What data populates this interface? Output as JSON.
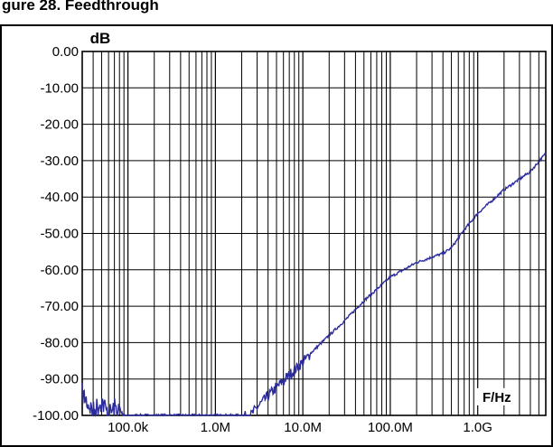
{
  "header": {
    "text": "gure 28. Feedthrough"
  },
  "chart_data": {
    "type": "line",
    "title": "",
    "ylabel": "dB",
    "xlabel": "F/Hz",
    "x_scale": "log",
    "xlim": [
      30000,
      6000000000
    ],
    "ylim": [
      -100,
      0
    ],
    "y_ticks": [
      0,
      -10,
      -20,
      -30,
      -40,
      -50,
      -60,
      -70,
      -80,
      -90,
      -100
    ],
    "y_tick_labels": [
      "0.00",
      "-10.00",
      "-20.00",
      "-30.00",
      "-40.00",
      "-50.00",
      "-60.00",
      "-70.00",
      "-80.00",
      "-90.00",
      "-100.00"
    ],
    "x_ticks": [
      100000,
      1000000,
      10000000,
      100000000,
      1000000000
    ],
    "x_tick_labels": [
      "100.0k",
      "1.0M",
      "10.0M",
      "100.0M",
      "1.0G"
    ],
    "grid": true,
    "series": [
      {
        "color": "#2b2b9e",
        "x": [
          30000,
          40000,
          50000,
          60000,
          70000,
          80000,
          90000,
          100000,
          2500000,
          3000000,
          5000000,
          10000000,
          20000000,
          30000000,
          50000000,
          100000000,
          200000000,
          300000000,
          400000000,
          500000000,
          700000000,
          1000000000,
          2000000000,
          4000000000,
          6000000000
        ],
        "y": [
          -91,
          -96,
          -93,
          -97,
          -95,
          -96,
          -98,
          -100,
          -100,
          -97.5,
          -92,
          -85,
          -78,
          -74,
          -68.5,
          -62,
          -58,
          -56.5,
          -55.5,
          -54,
          -49,
          -44.5,
          -38,
          -33,
          -28
        ]
      }
    ]
  }
}
